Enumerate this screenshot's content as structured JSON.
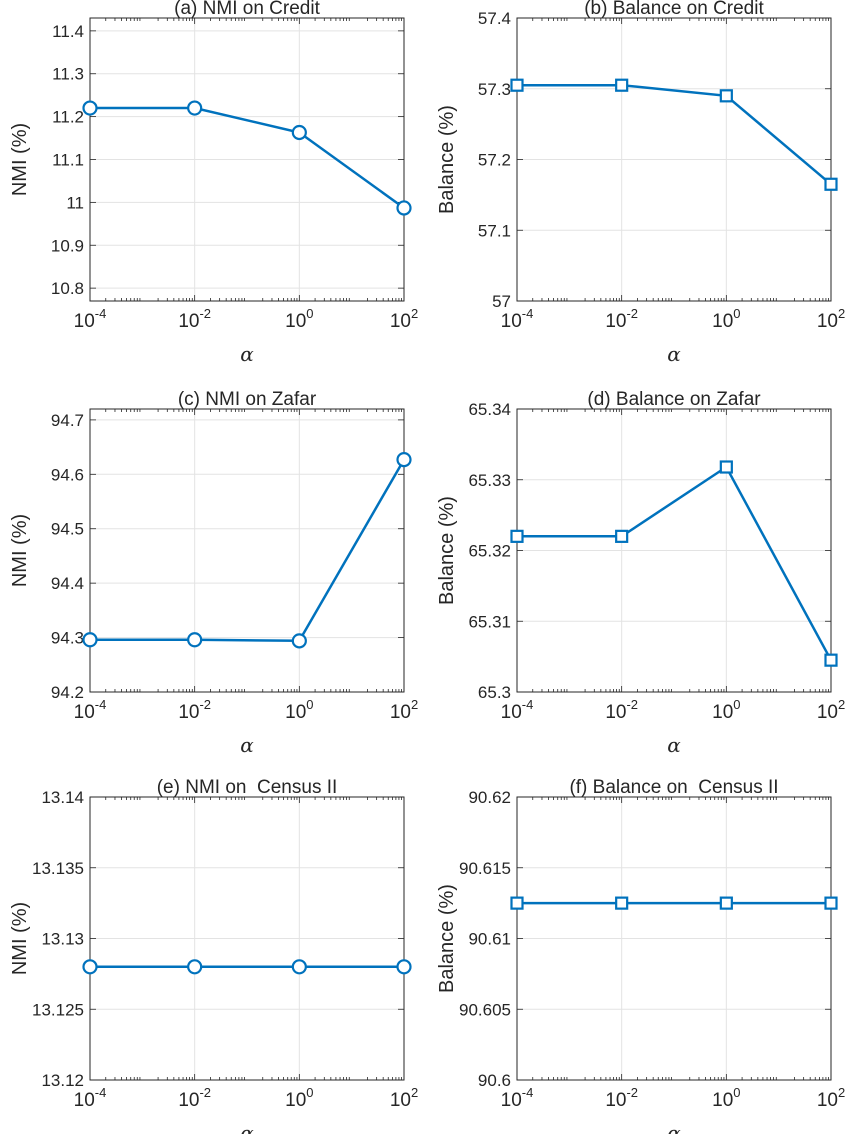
{
  "chart_data": [
    {
      "type": "line",
      "title": "(a) NMI on Credit",
      "xlabel": "α",
      "ylabel": "NMI (%)",
      "xscale": "log",
      "x": [
        0.0001,
        0.01,
        1,
        100
      ],
      "x_tick_labels": [
        {
          "base": "10",
          "exp": "-4"
        },
        {
          "base": "10",
          "exp": "-2"
        },
        {
          "base": "10",
          "exp": "0"
        },
        {
          "base": "10",
          "exp": "2"
        }
      ],
      "series": [
        {
          "name": "NMI",
          "values": [
            11.22,
            11.22,
            11.163,
            10.987
          ]
        }
      ],
      "ylim": [
        10.77,
        11.43
      ],
      "yticks": [
        10.8,
        10.9,
        11.0,
        11.1,
        11.2,
        11.3,
        11.4
      ],
      "ytick_labels": [
        "10.8",
        "10.9",
        "11",
        "11.1",
        "11.2",
        "11.3",
        "11.4"
      ],
      "marker": "circle",
      "grid": true
    },
    {
      "type": "line",
      "title": "(b) Balance on Credit",
      "xlabel": "α",
      "ylabel": "Balance (%)",
      "xscale": "log",
      "x": [
        0.0001,
        0.01,
        1,
        100
      ],
      "x_tick_labels": [
        {
          "base": "10",
          "exp": "-4"
        },
        {
          "base": "10",
          "exp": "-2"
        },
        {
          "base": "10",
          "exp": "0"
        },
        {
          "base": "10",
          "exp": "2"
        }
      ],
      "series": [
        {
          "name": "Balance",
          "values": [
            57.305,
            57.305,
            57.29,
            57.165
          ]
        }
      ],
      "ylim": [
        57.0,
        57.4
      ],
      "yticks": [
        57.0,
        57.1,
        57.2,
        57.3,
        57.4
      ],
      "ytick_labels": [
        "57",
        "57.1",
        "57.2",
        "57.3",
        "57.4"
      ],
      "marker": "square",
      "grid": true
    },
    {
      "type": "line",
      "title": "(c) NMI on Zafar",
      "xlabel": "α",
      "ylabel": "NMI (%)",
      "xscale": "log",
      "x": [
        0.0001,
        0.01,
        1,
        100
      ],
      "x_tick_labels": [
        {
          "base": "10",
          "exp": "-4"
        },
        {
          "base": "10",
          "exp": "-2"
        },
        {
          "base": "10",
          "exp": "0"
        },
        {
          "base": "10",
          "exp": "2"
        }
      ],
      "series": [
        {
          "name": "NMI",
          "values": [
            94.296,
            94.296,
            94.294,
            94.627
          ]
        }
      ],
      "ylim": [
        94.2,
        94.72
      ],
      "yticks": [
        94.2,
        94.3,
        94.4,
        94.5,
        94.6,
        94.7
      ],
      "ytick_labels": [
        "94.2",
        "94.3",
        "94.4",
        "94.5",
        "94.6",
        "94.7"
      ],
      "marker": "circle",
      "grid": true
    },
    {
      "type": "line",
      "title": "(d) Balance on Zafar",
      "xlabel": "α",
      "ylabel": "Balance (%)",
      "xscale": "log",
      "x": [
        0.0001,
        0.01,
        1,
        100
      ],
      "x_tick_labels": [
        {
          "base": "10",
          "exp": "-4"
        },
        {
          "base": "10",
          "exp": "-2"
        },
        {
          "base": "10",
          "exp": "0"
        },
        {
          "base": "10",
          "exp": "2"
        }
      ],
      "series": [
        {
          "name": "Balance",
          "values": [
            65.322,
            65.322,
            65.3318,
            65.3045
          ]
        }
      ],
      "ylim": [
        65.3,
        65.34
      ],
      "yticks": [
        65.3,
        65.31,
        65.32,
        65.33,
        65.34
      ],
      "ytick_labels": [
        "65.3",
        "65.31",
        "65.32",
        "65.33",
        "65.34"
      ],
      "marker": "square",
      "grid": true
    },
    {
      "type": "line",
      "title": "(e) NMI on  Census II",
      "xlabel": "α",
      "ylabel": "NMI (%)",
      "xscale": "log",
      "x": [
        0.0001,
        0.01,
        1,
        100
      ],
      "x_tick_labels": [
        {
          "base": "10",
          "exp": "-4"
        },
        {
          "base": "10",
          "exp": "-2"
        },
        {
          "base": "10",
          "exp": "0"
        },
        {
          "base": "10",
          "exp": "2"
        }
      ],
      "series": [
        {
          "name": "NMI",
          "values": [
            13.128,
            13.128,
            13.128,
            13.128
          ]
        }
      ],
      "ylim": [
        13.12,
        13.14
      ],
      "yticks": [
        13.12,
        13.125,
        13.13,
        13.135,
        13.14
      ],
      "ytick_labels": [
        "13.12",
        "13.125",
        "13.13",
        "13.135",
        "13.14"
      ],
      "marker": "circle",
      "grid": true
    },
    {
      "type": "line",
      "title": "(f) Balance on  Census II",
      "xlabel": "α",
      "ylabel": "Balance (%)",
      "xscale": "log",
      "x": [
        0.0001,
        0.01,
        1,
        100
      ],
      "x_tick_labels": [
        {
          "base": "10",
          "exp": "-4"
        },
        {
          "base": "10",
          "exp": "-2"
        },
        {
          "base": "10",
          "exp": "0"
        },
        {
          "base": "10",
          "exp": "2"
        }
      ],
      "series": [
        {
          "name": "Balance",
          "values": [
            90.6125,
            90.6125,
            90.6125,
            90.6125
          ]
        }
      ],
      "ylim": [
        90.6,
        90.62
      ],
      "yticks": [
        90.6,
        90.605,
        90.61,
        90.615,
        90.62
      ],
      "ytick_labels": [
        "90.6",
        "90.605",
        "90.61",
        "90.615",
        "90.62"
      ],
      "marker": "square",
      "grid": true
    }
  ],
  "colors": {
    "series": "#0072BD",
    "axis": "#262626",
    "grid": "#e3e3e3"
  }
}
